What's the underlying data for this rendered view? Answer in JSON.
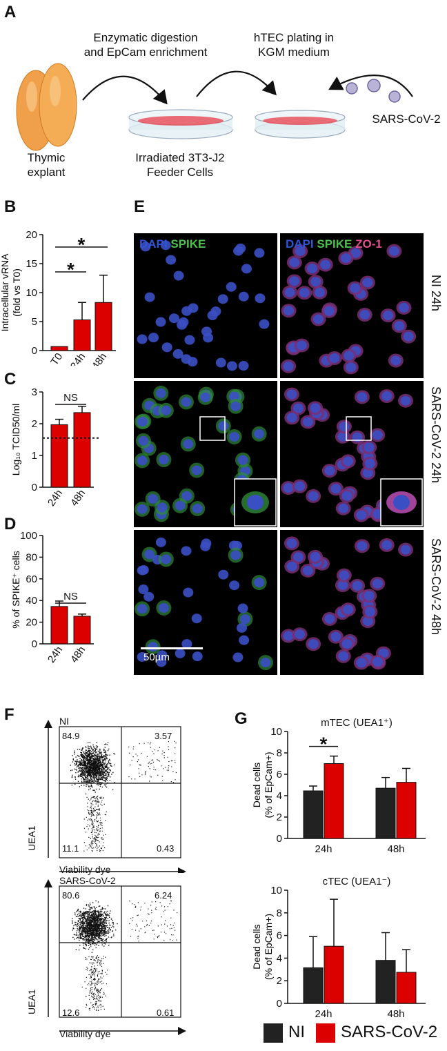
{
  "panel_labels": {
    "A": "A",
    "B": "B",
    "C": "C",
    "D": "D",
    "E": "E",
    "F": "F",
    "G": "G"
  },
  "schematic": {
    "step1": [
      "Enzymatic digestion",
      "and EpCam enrichment"
    ],
    "step2": [
      "hTEC plating in",
      "KGM medium"
    ],
    "virus": "SARS-CoV-2",
    "thymus": [
      "Thymic",
      "explant"
    ],
    "feeder": [
      "Irradiated 3T3-J2",
      "Feeder Cells"
    ]
  },
  "microscopy": {
    "left_header": {
      "dapi": "DAPI",
      "spike": "SPIKE"
    },
    "right_header": {
      "dapi": "DAPI",
      "spike": "SPIKE",
      "zo1": "ZO-1"
    },
    "rows": [
      "NI 24h",
      "SARS-CoV-2 24h",
      "SARS-CoV-2 48h"
    ],
    "scale_bar": "50µm"
  },
  "flow": {
    "plots": [
      {
        "title": "NI",
        "q_tl": "84.9",
        "q_tr": "3.57",
        "q_bl": "11.1",
        "q_br": "0.43"
      },
      {
        "title": "SARS-CoV-2",
        "q_tl": "80.6",
        "q_tr": "6.24",
        "q_bl": "12.6",
        "q_br": "0.61"
      }
    ],
    "x_label": "Viability dye",
    "y_label": "UEA1"
  },
  "legend": {
    "ni": "NI",
    "sars": "SARS-CoV-2",
    "ni_color": "#222222",
    "sars_color": "#dd0000"
  },
  "chart_data": [
    {
      "id": "B",
      "type": "bar",
      "categories": [
        "T0",
        "24h",
        "48h"
      ],
      "values": [
        0.7,
        5.3,
        8.3
      ],
      "errors": [
        0,
        3.0,
        4.7
      ],
      "ylabel": [
        "Intracellular vRNA",
        "(fold vs T0)"
      ],
      "ylim": [
        0,
        20
      ],
      "yticks": [
        "0",
        "5",
        "10",
        "15",
        "20"
      ],
      "significance": [
        {
          "from": 0,
          "to": 1,
          "label": "*"
        },
        {
          "from": 0,
          "to": 2,
          "label": "*"
        }
      ]
    },
    {
      "id": "C",
      "type": "bar",
      "categories": [
        "24h",
        "48h"
      ],
      "values": [
        1.97,
        2.35
      ],
      "errors": [
        0.17,
        0.2
      ],
      "ylabel": [
        "Log₁₀ TCID50/ml"
      ],
      "ylim": [
        0,
        3
      ],
      "yticks": [
        "0",
        "1",
        "2",
        "3"
      ],
      "threshold": 1.55,
      "significance": [
        {
          "from": 0,
          "to": 1,
          "label": "NS"
        }
      ]
    },
    {
      "id": "D",
      "type": "bar",
      "categories": [
        "24h",
        "48h"
      ],
      "values": [
        34.5,
        25.5
      ],
      "errors": [
        5,
        2
      ],
      "ylabel": [
        "% of SPIKE⁺ cells"
      ],
      "ylim": [
        0,
        100
      ],
      "yticks": [
        "0",
        "20",
        "40",
        "60",
        "80",
        "100"
      ],
      "significance": [
        {
          "from": 0,
          "to": 1,
          "label": "NS"
        }
      ]
    },
    {
      "id": "G1",
      "type": "bar",
      "title": "mTEC (UEA1⁺)",
      "categories": [
        "24h",
        "48h"
      ],
      "series": [
        {
          "name": "NI",
          "values": [
            4.45,
            4.7
          ],
          "errors": [
            0.45,
            1.0
          ]
        },
        {
          "name": "SARS-CoV-2",
          "values": [
            7.0,
            5.25
          ],
          "errors": [
            0.7,
            1.3
          ]
        }
      ],
      "ylabel": [
        "Dead cells",
        "(% of EpCam+)"
      ],
      "ylim": [
        0,
        10
      ],
      "yticks": [
        "0",
        "2",
        "4",
        "6",
        "8",
        "10"
      ],
      "significance": [
        {
          "group": 0,
          "label": "*"
        }
      ]
    },
    {
      "id": "G2",
      "type": "bar",
      "title": "cTEC (UEA1⁻)",
      "categories": [
        "24h",
        "48h"
      ],
      "series": [
        {
          "name": "NI",
          "values": [
            3.15,
            3.8
          ],
          "errors": [
            2.75,
            2.45
          ]
        },
        {
          "name": "SARS-CoV-2",
          "values": [
            5.05,
            2.75
          ],
          "errors": [
            4.15,
            2.0
          ]
        }
      ],
      "ylabel": [
        "Dead cells",
        "(% of EpCam+)"
      ],
      "ylim": [
        0,
        10
      ],
      "yticks": [
        "0",
        "2",
        "4",
        "6",
        "8",
        "10"
      ],
      "significance": []
    }
  ]
}
